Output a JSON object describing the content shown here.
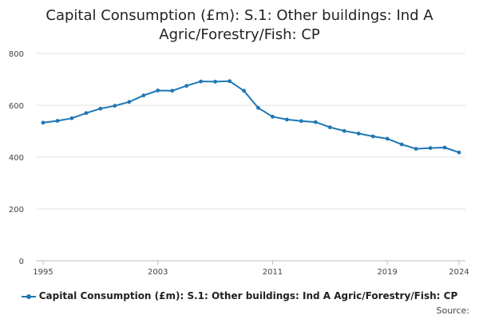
{
  "chart_data": {
    "type": "line",
    "title_lines": [
      "Capital Consumption (£m): S.1: Other buildings: Ind A",
      "Agric/Forestry/Fish: CP"
    ],
    "xlabel": "",
    "ylabel": "",
    "xlim": [
      1995,
      2024
    ],
    "ylim": [
      0,
      800
    ],
    "x_ticks": [
      1995,
      2003,
      2011,
      2019,
      2024
    ],
    "y_ticks": [
      0,
      200,
      400,
      600,
      800
    ],
    "grid": "horizontal",
    "legend_position": "bottom",
    "series": [
      {
        "name": "Capital Consumption (£m): S.1: Other buildings: Ind A Agric/Forestry/Fish: CP",
        "color": "#1f78b4",
        "x": [
          1995,
          1996,
          1997,
          1998,
          1999,
          2000,
          2001,
          2002,
          2003,
          2004,
          2005,
          2006,
          2007,
          2008,
          2009,
          2010,
          2011,
          2012,
          2013,
          2014,
          2015,
          2016,
          2017,
          2018,
          2019,
          2020,
          2021,
          2022,
          2023,
          2024
        ],
        "values": [
          533,
          540,
          550,
          570,
          587,
          598,
          613,
          638,
          657,
          656,
          675,
          692,
          691,
          693,
          656,
          590,
          556,
          545,
          539,
          535,
          515,
          501,
          491,
          480,
          471,
          449,
          432,
          435,
          437,
          418
        ]
      }
    ]
  },
  "source_label": "Source:"
}
